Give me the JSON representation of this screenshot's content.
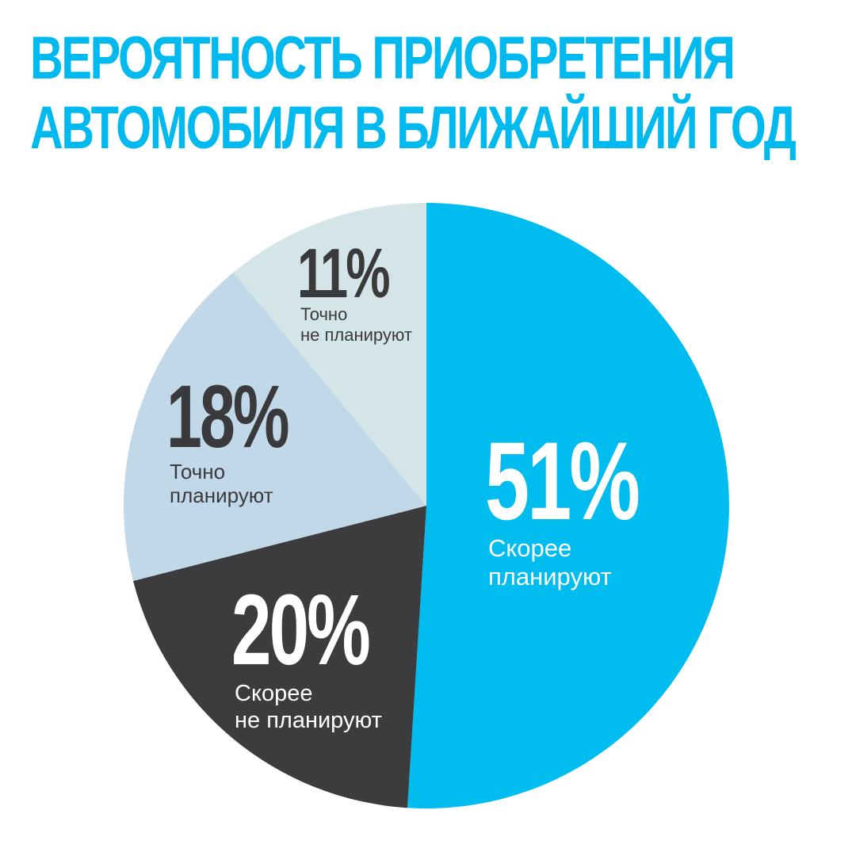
{
  "title": {
    "lines": [
      "ВЕРОЯТНОСТЬ ПРИОБРЕТЕНИЯ",
      "АВТОМОБИЛЯ В БЛИЖАЙШИЙ ГОД"
    ]
  },
  "colors": {
    "title": "#00b9ef",
    "background": "#ffffff"
  },
  "chart_data": {
    "type": "pie",
    "title": "ВЕРОЯТНОСТЬ ПРИОБРЕТЕНИЯ АВТОМОБИЛЯ В БЛИЖАЙШИЙ ГОД",
    "start_angle_deg": 0,
    "direction": "clockwise",
    "slices": [
      {
        "id": "skoree-planiruyut",
        "value": 51,
        "label": "51%",
        "desc": [
          "Скорее",
          "планируют"
        ],
        "color": "#00bcef",
        "text_color": "#ffffff"
      },
      {
        "id": "skoree-ne-planiruyut",
        "value": 20,
        "label": "20%",
        "desc": [
          "Скорее",
          "не планируют"
        ],
        "color": "#3c3c3e",
        "text_color": "#ffffff"
      },
      {
        "id": "tochno-planiruyut",
        "value": 18,
        "label": "18%",
        "desc": [
          "Точно",
          "планируют"
        ],
        "color": "#c1d8e9",
        "text_color": "#3a3a3c"
      },
      {
        "id": "tochno-ne-planiruyut",
        "value": 11,
        "label": "11%",
        "desc": [
          "Точно",
          "не планируют"
        ],
        "color": "#d4e5e8",
        "text_color": "#3a3a3c"
      }
    ]
  }
}
